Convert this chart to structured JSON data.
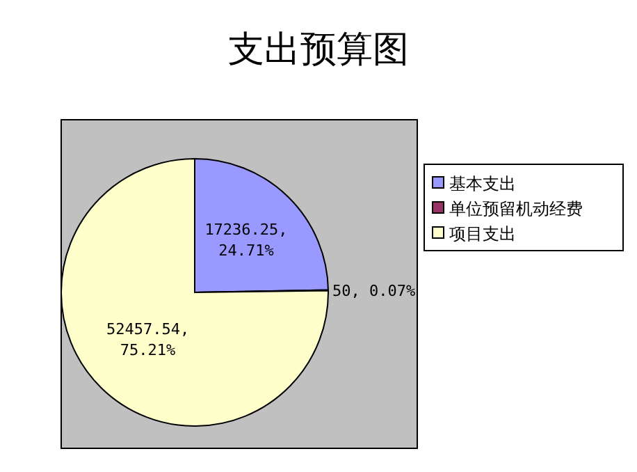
{
  "chart_data": {
    "type": "pie",
    "title": "支出预算图",
    "categories": [
      "基本支出",
      "单位预留机动经费",
      "项目支出"
    ],
    "values": [
      17236.25,
      50,
      52457.54
    ],
    "colors": [
      "#9999ff",
      "#993366",
      "#ffffcc"
    ],
    "value_labels": [
      "17236.25, 24.71%",
      "50, 0.07%",
      "52457.54, 75.21%"
    ],
    "legend": "right"
  }
}
